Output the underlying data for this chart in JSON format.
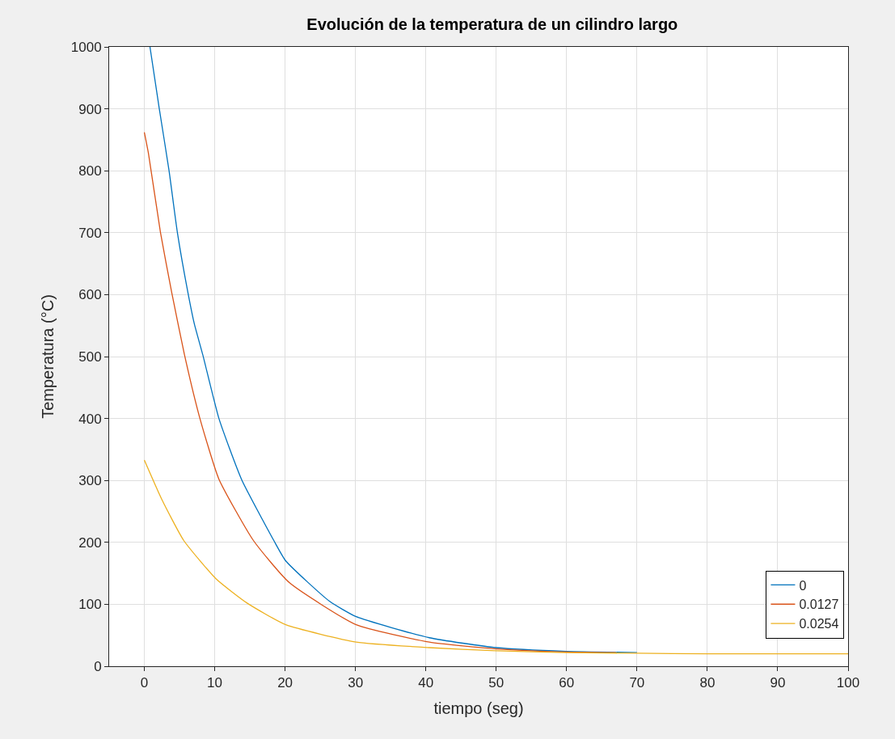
{
  "chart_data": {
    "type": "line",
    "title": "Evolución de la temperatura de un cilindro largo",
    "xlabel": "tiempo (seg)",
    "ylabel": "Temperatura (°C)",
    "xlim": [
      -5,
      100
    ],
    "xticks": [
      0,
      10,
      20,
      30,
      40,
      50,
      60,
      70,
      80,
      90,
      100
    ],
    "ylim": [
      0,
      1000
    ],
    "yticks": [
      0,
      100,
      200,
      300,
      400,
      500,
      600,
      700,
      800,
      900,
      1000
    ],
    "grid": true,
    "legend": "bottom right",
    "line_style": "solid",
    "marker": "none",
    "series": [
      {
        "name": "0",
        "color": "#0072bd",
        "x": [
          0.8,
          2.1,
          3.5,
          4.7,
          6.2,
          7.1,
          8.3,
          10.6,
          13.8,
          18.4,
          20.1,
          26.3,
          30.1,
          40.5,
          50,
          60,
          70
        ],
        "values": [
          1000,
          902,
          801,
          700,
          603,
          553,
          503,
          400,
          302,
          203,
          170,
          105,
          80,
          46,
          30,
          24,
          22
        ]
      },
      {
        "name": "0.0127",
        "color": "#d95319",
        "x": [
          0,
          0.6,
          2.3,
          3.9,
          5.7,
          7.9,
          10.6,
          15.5,
          20.6,
          30.1,
          40.5,
          50,
          60,
          67
        ],
        "values": [
          862,
          827,
          700,
          603,
          503,
          400,
          302,
          203,
          135,
          67,
          39,
          28,
          23,
          22
        ]
      },
      {
        "name": "0.0254",
        "color": "#edb120",
        "x": [
          0,
          2.5,
          5.6,
          10.2,
          14.6,
          20.1,
          30.1,
          40.5,
          50,
          60,
          70,
          80,
          90,
          100
        ],
        "values": [
          333,
          269,
          203,
          141,
          102,
          67,
          39,
          30,
          25,
          22,
          21,
          20,
          20,
          20
        ]
      }
    ]
  }
}
